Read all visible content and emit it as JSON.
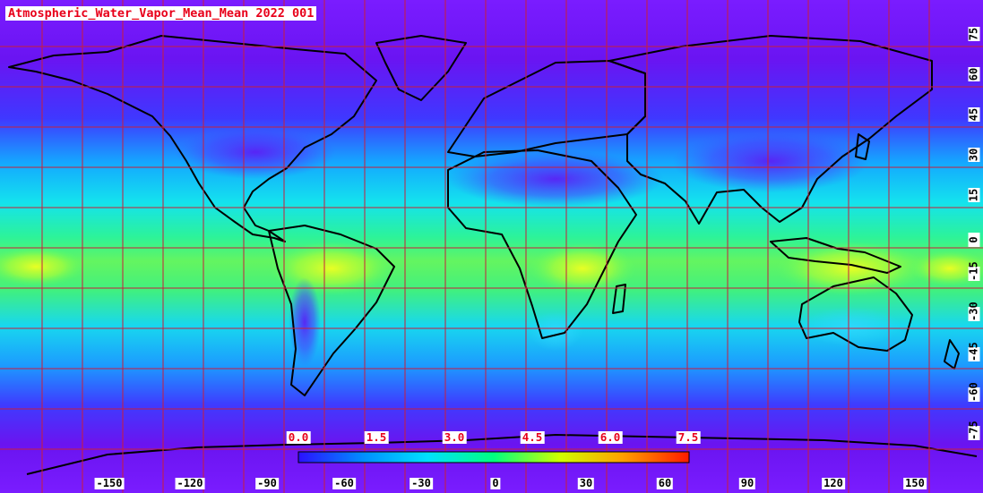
{
  "title": "Atmospheric_Water_Vapor_Mean_Mean 2022 001",
  "colors": {
    "background_low": "#6a16f0",
    "grid": "#c81e3c",
    "coast": "#000000",
    "label_red": "#e8001a"
  },
  "colorbar": {
    "min": 0.0,
    "max": 7.5,
    "tick_labels": [
      "0.0",
      "1.5",
      "3.0",
      "4.5",
      "6.0",
      "7.5"
    ],
    "colors": [
      "#2a10ff",
      "#0090ff",
      "#00e0ff",
      "#00ff80",
      "#d0ff00",
      "#ffa000",
      "#ff1a00"
    ]
  },
  "axes": {
    "longitude_labels": [
      "-150",
      "-120",
      "-90",
      "-60",
      "-30",
      "0",
      "30",
      "60",
      "90",
      "120",
      "150"
    ],
    "latitude_labels": [
      "75",
      "60",
      "45",
      "30",
      "15",
      "0",
      "-15",
      "-30",
      "-45",
      "-60",
      "-75"
    ]
  }
}
